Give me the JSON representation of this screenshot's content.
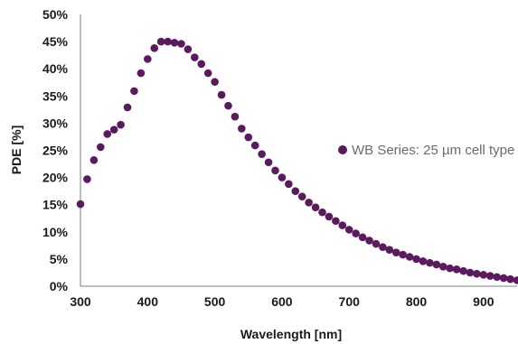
{
  "chart_data": {
    "type": "scatter",
    "title": "",
    "xlabel": "Wavelength [nm]",
    "ylabel": "PDE [%]",
    "xlim": [
      300,
      950
    ],
    "ylim": [
      0,
      50
    ],
    "x_ticks": [
      "300",
      "400",
      "500",
      "600",
      "700",
      "800",
      "900"
    ],
    "y_ticks": [
      "0%",
      "5%",
      "10%",
      "15%",
      "20%",
      "25%",
      "30%",
      "35%",
      "40%",
      "45%",
      "50%"
    ],
    "grid": false,
    "legend_position": "right",
    "colors": {
      "series": "#5b1a5e",
      "axis": "#7f7f7f"
    },
    "series": [
      {
        "name": "WB Series: 25 µm cell type",
        "x": [
          300,
          310,
          320,
          330,
          340,
          350,
          360,
          370,
          380,
          390,
          400,
          410,
          420,
          430,
          440,
          450,
          460,
          470,
          480,
          490,
          500,
          510,
          520,
          530,
          540,
          550,
          560,
          570,
          580,
          590,
          600,
          610,
          620,
          630,
          640,
          650,
          660,
          670,
          680,
          690,
          700,
          710,
          720,
          730,
          740,
          750,
          760,
          770,
          780,
          790,
          800,
          810,
          820,
          830,
          840,
          850,
          860,
          870,
          880,
          890,
          900,
          910,
          920,
          930,
          940,
          950
        ],
        "y": [
          15.1,
          19.7,
          23.2,
          25.6,
          28.0,
          28.8,
          29.7,
          32.9,
          35.9,
          39.2,
          41.8,
          43.8,
          45.0,
          45.0,
          44.8,
          44.6,
          43.6,
          42.1,
          40.9,
          39.2,
          37.6,
          35.2,
          33.2,
          31.2,
          29.0,
          27.4,
          25.9,
          24.3,
          22.8,
          21.3,
          20.0,
          18.8,
          17.5,
          16.5,
          15.4,
          14.5,
          13.6,
          12.8,
          12.0,
          11.2,
          10.4,
          9.7,
          9.0,
          8.4,
          7.8,
          7.2,
          6.7,
          6.2,
          5.8,
          5.4,
          5.0,
          4.6,
          4.3,
          4.0,
          3.6,
          3.3,
          3.1,
          2.8,
          2.5,
          2.3,
          2.1,
          1.9,
          1.7,
          1.5,
          1.3,
          1.1
        ]
      }
    ]
  }
}
